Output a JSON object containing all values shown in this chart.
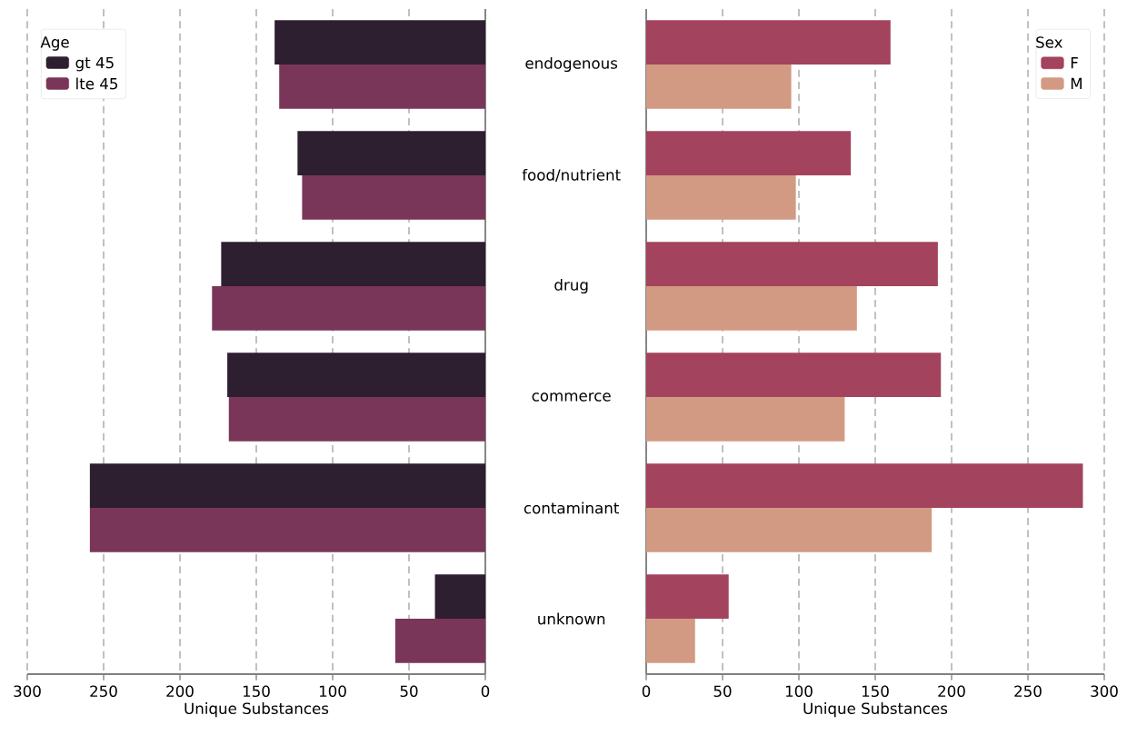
{
  "chart_data": [
    {
      "type": "bar",
      "orientation": "horizontal",
      "categories": [
        "endogenous",
        "food/nutrient",
        "drug",
        "commerce",
        "contaminant",
        "unknown"
      ],
      "xlabel": "Unique Substances",
      "xlim": [
        300,
        0
      ],
      "xticks": [
        300,
        250,
        200,
        150,
        100,
        50,
        0
      ],
      "grid": "x",
      "legend": "top left",
      "legend_title": "Age",
      "series": [
        {
          "name": "gt 45",
          "color": "#2d1e30",
          "values": [
            138,
            123,
            173,
            169,
            259,
            33
          ]
        },
        {
          "name": "lte 45",
          "color": "#7a3658",
          "values": [
            135,
            120,
            179,
            168,
            259,
            59
          ]
        }
      ]
    },
    {
      "type": "bar",
      "orientation": "horizontal",
      "categories": [
        null,
        null,
        null,
        null,
        null,
        null
      ],
      "tick_labels": "x",
      "xlabel": "Unique Substances",
      "xlim": [
        0,
        300
      ],
      "xticks": [
        0,
        50,
        100,
        150,
        200,
        250,
        300
      ],
      "grid": "x",
      "legend": "top right",
      "legend_title": "Sex",
      "series": [
        {
          "name": "F",
          "color": "#a3435d",
          "values": [
            160,
            134,
            191,
            193,
            286,
            54
          ]
        },
        {
          "name": "M",
          "color": "#d39a83",
          "values": [
            95,
            98,
            138,
            130,
            187,
            32
          ]
        }
      ]
    }
  ]
}
